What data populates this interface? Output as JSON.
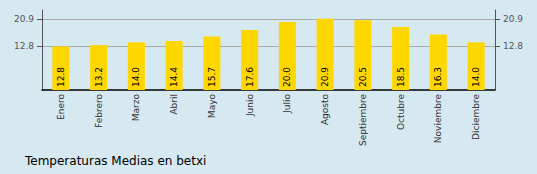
{
  "chart_data": {
    "type": "bar",
    "title": "Temperaturas Medias en betxi",
    "categories": [
      "Enero",
      "Febrero",
      "Marzo",
      "Abril",
      "Mayo",
      "Junio",
      "Julio",
      "Agosto",
      "Septiembre",
      "Octubre",
      "Noviembre",
      "Diciembre"
    ],
    "values": [
      12.8,
      13.2,
      14.0,
      14.4,
      15.7,
      17.6,
      20.0,
      20.9,
      20.5,
      18.5,
      16.3,
      14.0
    ],
    "value_labels": [
      "12.8",
      "13.2",
      "14.0",
      "14.4",
      "15.7",
      "17.6",
      "20.0",
      "20.9",
      "20.5",
      "18.5",
      "16.3",
      "14.0"
    ],
    "data_labels": true,
    "color": "#FFD700",
    "ylim": [
      0,
      23.5
    ],
    "yticks": [
      12.8,
      20.9
    ],
    "y2lim": [
      0,
      23.5
    ],
    "y2ticks": [
      12.8,
      20.9
    ],
    "grid": true
  }
}
